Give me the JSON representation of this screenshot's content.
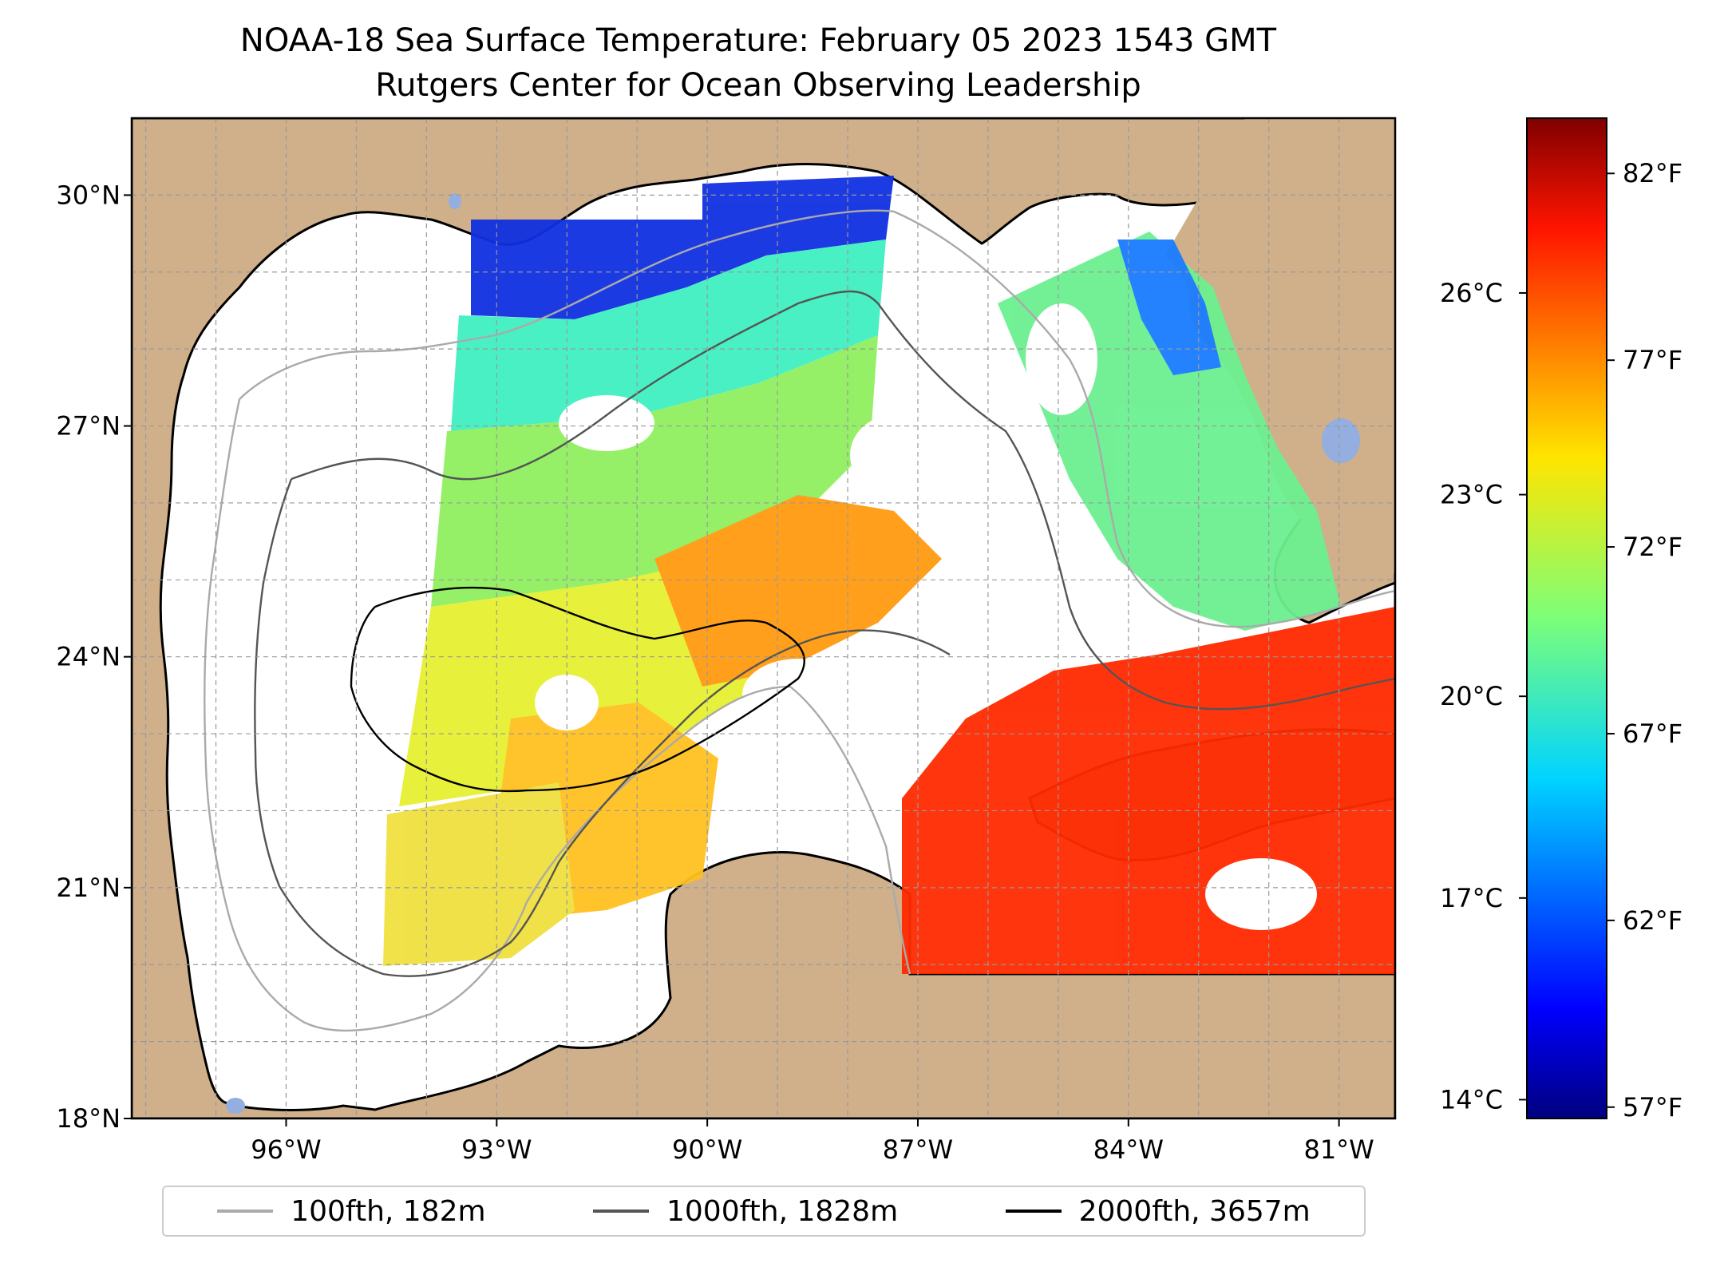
{
  "title": "NOAA-18 Sea Surface Temperature: February 05 2023 1543 GMT",
  "subtitle": "Rutgers Center for Ocean Observing Leadership",
  "map": {
    "lat_range": [
      18,
      31
    ],
    "lon_range": [
      -98.2,
      -80.2
    ],
    "lat_ticks": [
      {
        "value": 30,
        "label": "30°N"
      },
      {
        "value": 27,
        "label": "27°N"
      },
      {
        "value": 24,
        "label": "24°N"
      },
      {
        "value": 21,
        "label": "21°N"
      },
      {
        "value": 18,
        "label": "18°N"
      }
    ],
    "lon_ticks": [
      {
        "value": -96,
        "label": "96°W"
      },
      {
        "value": -93,
        "label": "93°W"
      },
      {
        "value": -90,
        "label": "90°W"
      },
      {
        "value": -87,
        "label": "87°W"
      },
      {
        "value": -84,
        "label": "84°W"
      },
      {
        "value": -81,
        "label": "81°W"
      }
    ],
    "gridlines": true,
    "land_color": "#cfb08a",
    "water_color": "#ffffff",
    "lake_color": "#94aedf"
  },
  "colorbar": {
    "colormap": "jet",
    "celsius_ticks": [
      {
        "value": 26,
        "label": "26°C"
      },
      {
        "value": 23,
        "label": "23°C"
      },
      {
        "value": 20,
        "label": "20°C"
      },
      {
        "value": 17,
        "label": "17°C"
      },
      {
        "value": 14,
        "label": "14°C"
      }
    ],
    "fahrenheit_ticks": [
      {
        "value": 82,
        "label": "82°F"
      },
      {
        "value": 77,
        "label": "77°F"
      },
      {
        "value": 72,
        "label": "72°F"
      },
      {
        "value": 67,
        "label": "67°F"
      },
      {
        "value": 62,
        "label": "62°F"
      },
      {
        "value": 57,
        "label": "57°F"
      }
    ]
  },
  "legend": [
    {
      "label": "100fth, 182m",
      "color": "#aaaaaa"
    },
    {
      "label": "1000fth, 1828m",
      "color": "#555555"
    },
    {
      "label": "2000fth, 3657m",
      "color": "#000000"
    }
  ]
}
